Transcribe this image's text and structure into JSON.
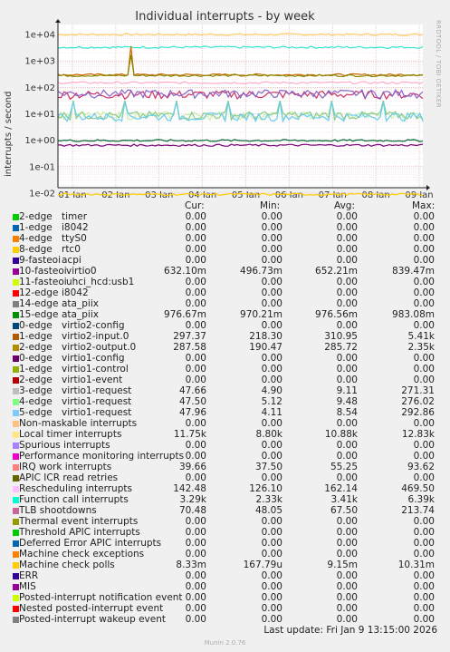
{
  "title": "Individual interrupts - by week",
  "side_label": "RRDTOOL / TOBI OETIKER",
  "ylabel": "interrupts / second",
  "footer": {
    "last_update": "Last update: Fri Jan  9 13:15:00 2026",
    "munin": "Munin 2.0.76"
  },
  "legend_headers": {
    "cur": "Cur:",
    "min": "Min:",
    "avg": "Avg:",
    "max": "Max:"
  },
  "chart_data": {
    "type": "line",
    "title": "Individual interrupts - by week",
    "ylabel": "interrupts / second",
    "y_scale": "log",
    "y_ticks": [
      "1e+04",
      "1e+03",
      "1e+02",
      "1e+01",
      "1e+00",
      "1e-01",
      "1e-02"
    ],
    "x_ticks": [
      "01 Jan",
      "02 Jan",
      "03 Jan",
      "04 Jan",
      "05 Jan",
      "06 Jan",
      "07 Jan",
      "08 Jan",
      "09 Jan"
    ],
    "grid": true,
    "series": [
      {
        "name": "Local timer interrupts",
        "color": "#ffcc66",
        "approx": 10000
      },
      {
        "name": "Function call interrupts",
        "color": "#33e6cc",
        "approx": 3300
      },
      {
        "name": "1-edge virtio2-input.0",
        "color": "#cc6600",
        "approx": 300
      },
      {
        "name": "2-edge virtio2-output.0",
        "color": "#888800",
        "approx": 280
      },
      {
        "name": "Rescheduling interrupts",
        "color": "#ffaacc",
        "approx": 150
      },
      {
        "name": "IRQ work interrupts",
        "color": "#cc3366",
        "approx": 55
      },
      {
        "name": "TLB shootdowns",
        "color": "#8866cc",
        "approx": 60
      },
      {
        "name": "3-edge virtio1-request",
        "color": "#cceeaa",
        "approx": 9
      },
      {
        "name": "4-edge virtio1-request",
        "color": "#88cc88",
        "approx": 9
      },
      {
        "name": "5-edge virtio1-request",
        "color": "#66ccee",
        "approx": 8
      },
      {
        "name": "15-edge ata_piix",
        "color": "#006633",
        "approx": 0.98
      },
      {
        "name": "10-fasteoi virtio0",
        "color": "#770077",
        "approx": 0.65
      },
      {
        "name": "Machine check polls",
        "color": "#ffcc00",
        "approx": 0.009
      }
    ]
  },
  "legend": [
    {
      "color": "#00cc00",
      "name": "2-edge",
      "desc": "timer",
      "cur": "0.00",
      "min": "0.00",
      "avg": "0.00",
      "max": "0.00"
    },
    {
      "color": "#0066b3",
      "name": "1-edge",
      "desc": "i8042",
      "cur": "0.00",
      "min": "0.00",
      "avg": "0.00",
      "max": "0.00"
    },
    {
      "color": "#ff8000",
      "name": "4-edge",
      "desc": "ttyS0",
      "cur": "0.00",
      "min": "0.00",
      "avg": "0.00",
      "max": "0.00"
    },
    {
      "color": "#ffcc00",
      "name": "8-edge",
      "desc": "rtc0",
      "cur": "0.00",
      "min": "0.00",
      "avg": "0.00",
      "max": "0.00"
    },
    {
      "color": "#330099",
      "name": "9-fasteoi",
      "desc": "acpi",
      "cur": "0.00",
      "min": "0.00",
      "avg": "0.00",
      "max": "0.00"
    },
    {
      "color": "#990099",
      "name": "10-fasteoi",
      "desc": "virtio0",
      "cur": "632.10m",
      "min": "496.73m",
      "avg": "652.21m",
      "max": "839.47m"
    },
    {
      "color": "#ccff00",
      "name": "11-fasteoi",
      "desc": "uhci_hcd:usb1",
      "cur": "0.00",
      "min": "0.00",
      "avg": "0.00",
      "max": "0.00"
    },
    {
      "color": "#ff0000",
      "name": "12-edge",
      "desc": "i8042",
      "cur": "0.00",
      "min": "0.00",
      "avg": "0.00",
      "max": "0.00"
    },
    {
      "color": "#808080",
      "name": "14-edge",
      "desc": "ata_piix",
      "cur": "0.00",
      "min": "0.00",
      "avg": "0.00",
      "max": "0.00"
    },
    {
      "color": "#008f00",
      "name": "15-edge",
      "desc": "ata_piix",
      "cur": "976.67m",
      "min": "970.21m",
      "avg": "976.56m",
      "max": "983.08m"
    },
    {
      "color": "#00487d",
      "name": "0-edge",
      "desc": "virtio2-config",
      "cur": "0.00",
      "min": "0.00",
      "avg": "0.00",
      "max": "0.00"
    },
    {
      "color": "#b35a00",
      "name": "1-edge",
      "desc": "virtio2-input.0",
      "cur": "297.37",
      "min": "218.30",
      "avg": "310.95",
      "max": "5.41k"
    },
    {
      "color": "#b38f00",
      "name": "2-edge",
      "desc": "virtio2-output.0",
      "cur": "287.58",
      "min": "190.47",
      "avg": "285.72",
      "max": "2.35k"
    },
    {
      "color": "#6b006b",
      "name": "0-edge",
      "desc": "virtio1-config",
      "cur": "0.00",
      "min": "0.00",
      "avg": "0.00",
      "max": "0.00"
    },
    {
      "color": "#8fb300",
      "name": "1-edge",
      "desc": "virtio1-control",
      "cur": "0.00",
      "min": "0.00",
      "avg": "0.00",
      "max": "0.00"
    },
    {
      "color": "#b30000",
      "name": "2-edge",
      "desc": "virtio1-event",
      "cur": "0.00",
      "min": "0.00",
      "avg": "0.00",
      "max": "0.00"
    },
    {
      "color": "#bebebe",
      "name": "3-edge",
      "desc": "virtio1-request",
      "cur": "47.66",
      "min": "4.90",
      "avg": "9.11",
      "max": "271.31"
    },
    {
      "color": "#80ff80",
      "name": "4-edge",
      "desc": "virtio1-request",
      "cur": "47.50",
      "min": "5.12",
      "avg": "9.48",
      "max": "276.02"
    },
    {
      "color": "#80c9ff",
      "name": "5-edge",
      "desc": "virtio1-request",
      "cur": "47.96",
      "min": "4.11",
      "avg": "8.54",
      "max": "292.86"
    },
    {
      "color": "#ffc080",
      "name": "Non-maskable interrupts",
      "desc": "",
      "cur": "0.00",
      "min": "0.00",
      "avg": "0.00",
      "max": "0.00"
    },
    {
      "color": "#ffe680",
      "name": "Local timer interrupts",
      "desc": "",
      "cur": "11.75k",
      "min": "8.80k",
      "avg": "10.88k",
      "max": "12.83k"
    },
    {
      "color": "#aa80ff",
      "name": "Spurious interrupts",
      "desc": "",
      "cur": "0.00",
      "min": "0.00",
      "avg": "0.00",
      "max": "0.00"
    },
    {
      "color": "#ee00cc",
      "name": "Performance monitoring interrupts",
      "desc": "",
      "cur": "0.00",
      "min": "0.00",
      "avg": "0.00",
      "max": "0.00"
    },
    {
      "color": "#ff8080",
      "name": "IRQ work interrupts",
      "desc": "",
      "cur": "39.66",
      "min": "37.50",
      "avg": "55.25",
      "max": "93.62"
    },
    {
      "color": "#666600",
      "name": "APIC ICR read retries",
      "desc": "",
      "cur": "0.00",
      "min": "0.00",
      "avg": "0.00",
      "max": "0.00"
    },
    {
      "color": "#ffbfff",
      "name": "Rescheduling interrupts",
      "desc": "",
      "cur": "142.48",
      "min": "126.10",
      "avg": "162.14",
      "max": "469.50"
    },
    {
      "color": "#00ffcc",
      "name": "Function call interrupts",
      "desc": "",
      "cur": "3.29k",
      "min": "2.33k",
      "avg": "3.41k",
      "max": "6.39k"
    },
    {
      "color": "#cc6699",
      "name": "TLB shootdowns",
      "desc": "",
      "cur": "70.48",
      "min": "48.05",
      "avg": "67.50",
      "max": "213.74"
    },
    {
      "color": "#999900",
      "name": "Thermal event interrupts",
      "desc": "",
      "cur": "0.00",
      "min": "0.00",
      "avg": "0.00",
      "max": "0.00"
    },
    {
      "color": "#00cc00",
      "name": "Threshold APIC interrupts",
      "desc": "",
      "cur": "0.00",
      "min": "0.00",
      "avg": "0.00",
      "max": "0.00"
    },
    {
      "color": "#0066b3",
      "name": "Deferred Error APIC interrupts",
      "desc": "",
      "cur": "0.00",
      "min": "0.00",
      "avg": "0.00",
      "max": "0.00"
    },
    {
      "color": "#ff8000",
      "name": "Machine check exceptions",
      "desc": "",
      "cur": "0.00",
      "min": "0.00",
      "avg": "0.00",
      "max": "0.00"
    },
    {
      "color": "#ffcc00",
      "name": "Machine check polls",
      "desc": "",
      "cur": "8.33m",
      "min": "167.79u",
      "avg": "9.15m",
      "max": "10.31m"
    },
    {
      "color": "#330099",
      "name": "ERR",
      "desc": "",
      "cur": "0.00",
      "min": "0.00",
      "avg": "0.00",
      "max": "0.00"
    },
    {
      "color": "#990099",
      "name": "MIS",
      "desc": "",
      "cur": "0.00",
      "min": "0.00",
      "avg": "0.00",
      "max": "0.00"
    },
    {
      "color": "#ccff00",
      "name": "Posted-interrupt notification event",
      "desc": "",
      "cur": "0.00",
      "min": "0.00",
      "avg": "0.00",
      "max": "0.00"
    },
    {
      "color": "#ff0000",
      "name": "Nested posted-interrupt event",
      "desc": "",
      "cur": "0.00",
      "min": "0.00",
      "avg": "0.00",
      "max": "0.00"
    },
    {
      "color": "#808080",
      "name": "Posted-interrupt wakeup event",
      "desc": "",
      "cur": "0.00",
      "min": "0.00",
      "avg": "0.00",
      "max": "0.00"
    }
  ]
}
